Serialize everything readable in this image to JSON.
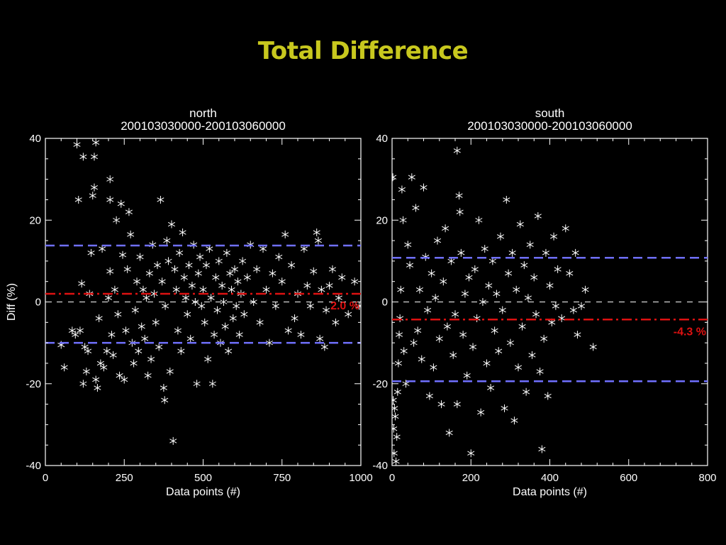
{
  "slide": {
    "title": "Total Difference"
  },
  "colors": {
    "background": "#000000",
    "title": "#c8c81e",
    "axes": "#ffffff",
    "points": "#ffffff",
    "mean_line": "#dd1111",
    "limit_line": "#7070ff",
    "zero_line": "#ffffff",
    "mean_label": "#dd1111"
  },
  "chart_data": [
    {
      "type": "scatter",
      "title": "north",
      "subtitle": "200103030000-200103060000",
      "xlabel": "Data points (#)",
      "ylabel": "Diff (%)",
      "xlim": [
        0,
        1000
      ],
      "ylim": [
        -40,
        40
      ],
      "xticks": [
        0,
        250,
        500,
        750,
        1000
      ],
      "xticklabels": [
        "0",
        "250",
        "500",
        "750",
        "1000"
      ],
      "yticks": [
        -40,
        -20,
        0,
        20,
        40
      ],
      "yticklabels": [
        "-40",
        "-20",
        "0",
        "20",
        "40"
      ],
      "marker": "asterisk",
      "reference_lines": [
        {
          "kind": "zero",
          "y": 0,
          "style": "dashed"
        },
        {
          "kind": "mean",
          "y": 2.0,
          "style": "dash-dot"
        },
        {
          "kind": "upper",
          "y": 13.8,
          "style": "dashed"
        },
        {
          "kind": "lower",
          "y": -10.0,
          "style": "dashed"
        }
      ],
      "mean_label": "2.0 %",
      "points": [
        [
          50,
          -10.5
        ],
        [
          60,
          -16
        ],
        [
          85,
          -7
        ],
        [
          95,
          -8
        ],
        [
          100,
          38.5
        ],
        [
          105,
          25
        ],
        [
          110,
          -7
        ],
        [
          115,
          4.5
        ],
        [
          120,
          35.5
        ],
        [
          120,
          -20
        ],
        [
          125,
          -11
        ],
        [
          130,
          -17
        ],
        [
          135,
          -12
        ],
        [
          140,
          2
        ],
        [
          145,
          12
        ],
        [
          150,
          26
        ],
        [
          155,
          35.5
        ],
        [
          155,
          28
        ],
        [
          160,
          39
        ],
        [
          160,
          -19
        ],
        [
          165,
          -21
        ],
        [
          170,
          -4
        ],
        [
          175,
          -15
        ],
        [
          180,
          13
        ],
        [
          185,
          -16
        ],
        [
          195,
          -12
        ],
        [
          200,
          1
        ],
        [
          205,
          30
        ],
        [
          205,
          7.5
        ],
        [
          205,
          25
        ],
        [
          210,
          -8
        ],
        [
          215,
          -13
        ],
        [
          220,
          3
        ],
        [
          225,
          20
        ],
        [
          230,
          -3
        ],
        [
          235,
          -18
        ],
        [
          240,
          24
        ],
        [
          245,
          11.5
        ],
        [
          250,
          -19
        ],
        [
          255,
          -7
        ],
        [
          260,
          8
        ],
        [
          265,
          22
        ],
        [
          270,
          16.5
        ],
        [
          275,
          -10
        ],
        [
          280,
          -15
        ],
        [
          285,
          -2
        ],
        [
          290,
          5
        ],
        [
          295,
          -12
        ],
        [
          300,
          11
        ],
        [
          305,
          -6
        ],
        [
          310,
          3
        ],
        [
          315,
          -9
        ],
        [
          320,
          1
        ],
        [
          325,
          -18
        ],
        [
          330,
          7
        ],
        [
          335,
          -14
        ],
        [
          340,
          14
        ],
        [
          345,
          2
        ],
        [
          350,
          -5
        ],
        [
          355,
          9
        ],
        [
          360,
          -11
        ],
        [
          365,
          25
        ],
        [
          370,
          5
        ],
        [
          375,
          -21
        ],
        [
          378,
          -24
        ],
        [
          380,
          -1
        ],
        [
          385,
          15
        ],
        [
          390,
          10
        ],
        [
          395,
          -17
        ],
        [
          400,
          19
        ],
        [
          405,
          -34
        ],
        [
          410,
          8
        ],
        [
          415,
          3
        ],
        [
          420,
          -7
        ],
        [
          425,
          12
        ],
        [
          430,
          -12
        ],
        [
          435,
          17
        ],
        [
          440,
          6
        ],
        [
          445,
          1
        ],
        [
          450,
          -3
        ],
        [
          455,
          9
        ],
        [
          460,
          -9
        ],
        [
          465,
          4
        ],
        [
          470,
          14
        ],
        [
          475,
          0
        ],
        [
          480,
          -20
        ],
        [
          485,
          7
        ],
        [
          490,
          11
        ],
        [
          495,
          -1
        ],
        [
          500,
          3
        ],
        [
          505,
          -5
        ],
        [
          510,
          9
        ],
        [
          515,
          -14
        ],
        [
          520,
          13
        ],
        [
          525,
          1
        ],
        [
          530,
          -20
        ],
        [
          535,
          -8
        ],
        [
          540,
          6
        ],
        [
          545,
          -2
        ],
        [
          550,
          10
        ],
        [
          555,
          -10
        ],
        [
          560,
          4
        ],
        [
          565,
          0
        ],
        [
          570,
          -6
        ],
        [
          575,
          12
        ],
        [
          580,
          -12
        ],
        [
          585,
          7
        ],
        [
          590,
          3
        ],
        [
          595,
          -4
        ],
        [
          600,
          8
        ],
        [
          605,
          -1
        ],
        [
          610,
          5
        ],
        [
          615,
          -8
        ],
        [
          620,
          2
        ],
        [
          625,
          10
        ],
        [
          630,
          -3
        ],
        [
          640,
          6
        ],
        [
          650,
          14
        ],
        [
          660,
          0
        ],
        [
          670,
          8
        ],
        [
          680,
          -5
        ],
        [
          690,
          13
        ],
        [
          700,
          3
        ],
        [
          710,
          -10
        ],
        [
          720,
          7
        ],
        [
          730,
          -1
        ],
        [
          740,
          11
        ],
        [
          750,
          5
        ],
        [
          760,
          16.5
        ],
        [
          770,
          -7
        ],
        [
          780,
          9
        ],
        [
          790,
          -4
        ],
        [
          800,
          2
        ],
        [
          810,
          -8
        ],
        [
          820,
          13
        ],
        [
          830,
          4
        ],
        [
          840,
          -1
        ],
        [
          850,
          7.5
        ],
        [
          860,
          17
        ],
        [
          865,
          15
        ],
        [
          870,
          -9
        ],
        [
          875,
          3
        ],
        [
          885,
          -11
        ],
        [
          890,
          -2
        ],
        [
          900,
          4
        ],
        [
          910,
          8
        ],
        [
          920,
          -5
        ],
        [
          930,
          1
        ],
        [
          940,
          6
        ],
        [
          960,
          -3
        ],
        [
          980,
          5
        ],
        [
          995,
          -1
        ]
      ]
    },
    {
      "type": "scatter",
      "title": "south",
      "subtitle": "200103030000-200103060000",
      "xlabel": "Data points (#)",
      "ylabel": "",
      "xlim": [
        0,
        800
      ],
      "ylim": [
        -40,
        40
      ],
      "xticks": [
        0,
        200,
        400,
        600,
        800
      ],
      "xticklabels": [
        "0",
        "200",
        "400",
        "600",
        "800"
      ],
      "yticks": [
        -40,
        -20,
        0,
        20,
        40
      ],
      "yticklabels": [
        "-40",
        "-20",
        "0",
        "20",
        "40"
      ],
      "marker": "asterisk",
      "reference_lines": [
        {
          "kind": "zero",
          "y": 0,
          "style": "dashed"
        },
        {
          "kind": "mean",
          "y": -4.3,
          "style": "dash-dot"
        },
        {
          "kind": "upper",
          "y": 10.8,
          "style": "dashed"
        },
        {
          "kind": "lower",
          "y": -19.4,
          "style": "dashed"
        }
      ],
      "mean_label": "-4.3 %",
      "points": [
        [
          2,
          30.5
        ],
        [
          3,
          -24
        ],
        [
          4,
          -31
        ],
        [
          5,
          -37
        ],
        [
          6,
          -26
        ],
        [
          8,
          -28
        ],
        [
          10,
          -39
        ],
        [
          12,
          -33
        ],
        [
          14,
          -22
        ],
        [
          16,
          -15
        ],
        [
          18,
          -8
        ],
        [
          20,
          -4
        ],
        [
          22,
          3
        ],
        [
          25,
          27.5
        ],
        [
          28,
          20
        ],
        [
          30,
          -12
        ],
        [
          35,
          -20
        ],
        [
          40,
          14
        ],
        [
          45,
          9
        ],
        [
          50,
          30.5
        ],
        [
          55,
          -10
        ],
        [
          60,
          23
        ],
        [
          65,
          -7
        ],
        [
          70,
          3
        ],
        [
          75,
          -14
        ],
        [
          80,
          28
        ],
        [
          85,
          11
        ],
        [
          90,
          -2
        ],
        [
          95,
          -23
        ],
        [
          100,
          7
        ],
        [
          105,
          -16
        ],
        [
          110,
          1
        ],
        [
          115,
          15
        ],
        [
          120,
          -9
        ],
        [
          125,
          -25
        ],
        [
          130,
          5
        ],
        [
          135,
          18
        ],
        [
          140,
          -6
        ],
        [
          145,
          -32
        ],
        [
          150,
          10
        ],
        [
          155,
          -13
        ],
        [
          160,
          -3
        ],
        [
          165,
          37
        ],
        [
          165,
          -25
        ],
        [
          170,
          26
        ],
        [
          172,
          22
        ],
        [
          175,
          12
        ],
        [
          180,
          -8
        ],
        [
          185,
          2
        ],
        [
          190,
          -18
        ],
        [
          195,
          6
        ],
        [
          200,
          -37
        ],
        [
          205,
          -11
        ],
        [
          210,
          8
        ],
        [
          215,
          -4
        ],
        [
          220,
          20
        ],
        [
          225,
          -27
        ],
        [
          230,
          0
        ],
        [
          235,
          13
        ],
        [
          240,
          -15
        ],
        [
          245,
          4
        ],
        [
          250,
          -21
        ],
        [
          255,
          10
        ],
        [
          260,
          -7
        ],
        [
          265,
          2
        ],
        [
          270,
          -12
        ],
        [
          275,
          16
        ],
        [
          280,
          -2
        ],
        [
          285,
          -26
        ],
        [
          290,
          25
        ],
        [
          295,
          7
        ],
        [
          300,
          -10
        ],
        [
          305,
          12
        ],
        [
          310,
          -29
        ],
        [
          315,
          3
        ],
        [
          320,
          -16
        ],
        [
          325,
          19
        ],
        [
          330,
          -6
        ],
        [
          335,
          9
        ],
        [
          340,
          -22
        ],
        [
          345,
          1
        ],
        [
          350,
          14
        ],
        [
          355,
          -13
        ],
        [
          360,
          6
        ],
        [
          365,
          -3
        ],
        [
          370,
          21
        ],
        [
          375,
          -17
        ],
        [
          380,
          -36
        ],
        [
          385,
          -9
        ],
        [
          390,
          12
        ],
        [
          395,
          -23
        ],
        [
          400,
          4
        ],
        [
          405,
          -5
        ],
        [
          410,
          16
        ],
        [
          415,
          -1
        ],
        [
          420,
          8
        ],
        [
          430,
          -4
        ],
        [
          440,
          18
        ],
        [
          450,
          7
        ],
        [
          460,
          -2
        ],
        [
          465,
          12
        ],
        [
          470,
          -8
        ],
        [
          480,
          -1
        ],
        [
          490,
          3
        ],
        [
          510,
          -11
        ]
      ]
    }
  ]
}
